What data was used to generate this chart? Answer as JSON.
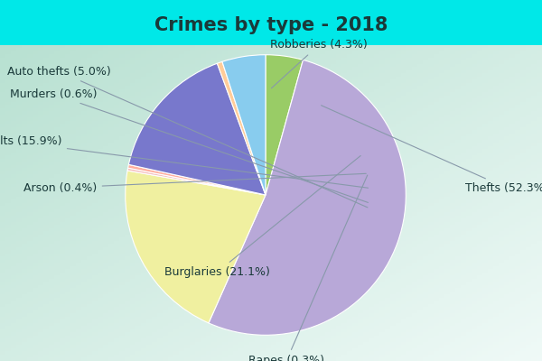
{
  "title": "Crimes by type - 2018",
  "ordered_labels": [
    "Robberies",
    "Thefts",
    "Burglaries",
    "Rapes",
    "Arson",
    "Assaults",
    "Murders",
    "Auto thefts"
  ],
  "ordered_values": [
    4.3,
    52.3,
    21.1,
    0.3,
    0.4,
    15.9,
    0.6,
    5.0
  ],
  "ordered_colors": [
    "#99cc66",
    "#b8a8d8",
    "#f0f0a0",
    "#f5c0c0",
    "#ffb0a0",
    "#7878cc",
    "#ffcc99",
    "#88ccee"
  ],
  "title_fontsize": 15,
  "label_fontsize": 9,
  "bg_cyan": "#00e8e8",
  "bg_green_top_left": "#b8ddd0",
  "bg_white_right": "#e8f4f4",
  "text_color": "#1a3a3a",
  "arrow_color": "#8899aa",
  "watermark_color": "#99bbcc",
  "label_positions": {
    "Robberies": [
      0.38,
      1.07,
      "center"
    ],
    "Thefts": [
      1.42,
      0.05,
      "left"
    ],
    "Burglaries": [
      -0.72,
      -0.55,
      "left"
    ],
    "Rapes": [
      0.15,
      -1.18,
      "center"
    ],
    "Arson": [
      -1.2,
      0.05,
      "right"
    ],
    "Assaults": [
      -1.45,
      0.38,
      "right"
    ],
    "Murders": [
      -1.2,
      0.72,
      "right"
    ],
    "Auto thefts": [
      -1.1,
      0.88,
      "right"
    ]
  }
}
